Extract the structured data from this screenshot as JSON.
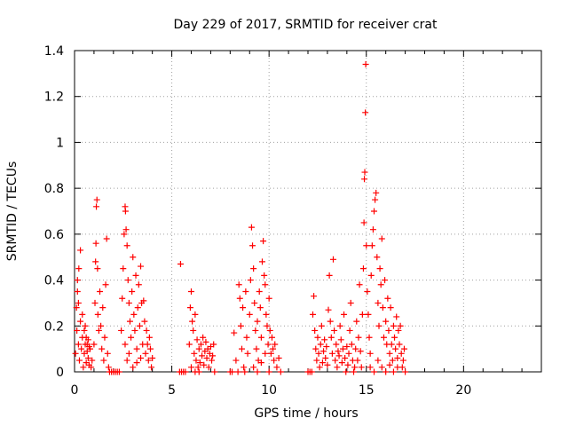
{
  "chart_data": {
    "type": "scatter",
    "title": "Day 229 of 2017, SRMTID for receiver crat",
    "xlabel": "GPS time / hours",
    "ylabel": "SRMTID / TECUs",
    "xlim": [
      0,
      24
    ],
    "ylim": [
      0,
      1.4
    ],
    "x_ticks": [
      0,
      5,
      10,
      15,
      20
    ],
    "x_tick_labels": [
      "0",
      "5",
      "10",
      "15",
      "20"
    ],
    "y_ticks": [
      0,
      0.2,
      0.4,
      0.6,
      0.8,
      1,
      1.2,
      1.4
    ],
    "y_tick_labels": [
      "0",
      "0.2",
      "0.4",
      "0.6",
      "0.8",
      "1",
      "1.2",
      "1.4"
    ],
    "grid": true,
    "marker": "+",
    "color": "#ff0000",
    "series": [
      {
        "name": "SRMTID",
        "points": [
          [
            0.05,
            0.08
          ],
          [
            0.1,
            0.28
          ],
          [
            0.12,
            0.18
          ],
          [
            0.15,
            0.35
          ],
          [
            0.2,
            0.12
          ],
          [
            0.22,
            0.45
          ],
          [
            0.25,
            0.05
          ],
          [
            0.3,
            0.22
          ],
          [
            0.35,
            0.1
          ],
          [
            0.4,
            0.15
          ],
          [
            0.45,
            0.02
          ],
          [
            0.5,
            0.08
          ],
          [
            0.55,
            0.2
          ],
          [
            0.6,
            0.04
          ],
          [
            0.65,
            0.12
          ],
          [
            0.7,
            0.06
          ],
          [
            0.75,
            0.03
          ],
          [
            0.8,
            0.1
          ],
          [
            0.85,
            0.02
          ],
          [
            0.9,
            0.05
          ],
          [
            0.3,
            0.53
          ],
          [
            0.15,
            0.4
          ],
          [
            0.2,
            0.3
          ],
          [
            0.4,
            0.25
          ],
          [
            0.5,
            0.18
          ],
          [
            0.55,
            0.12
          ],
          [
            0.6,
            0.15
          ],
          [
            0.65,
            0.09
          ],
          [
            0.7,
            0.14
          ],
          [
            0.75,
            0.11
          ],
          [
            1.0,
            0.12
          ],
          [
            1.05,
            0.3
          ],
          [
            1.08,
            0.48
          ],
          [
            1.1,
            0.56
          ],
          [
            1.12,
            0.72
          ],
          [
            1.15,
            0.75
          ],
          [
            1.18,
            0.45
          ],
          [
            1.2,
            0.25
          ],
          [
            1.25,
            0.18
          ],
          [
            1.3,
            0.35
          ],
          [
            1.35,
            0.2
          ],
          [
            1.4,
            0.1
          ],
          [
            1.45,
            0.28
          ],
          [
            1.5,
            0.05
          ],
          [
            1.55,
            0.15
          ],
          [
            1.6,
            0.38
          ],
          [
            1.65,
            0.58
          ],
          [
            1.7,
            0.08
          ],
          [
            1.75,
            0.02
          ],
          [
            1.8,
            0.0
          ],
          [
            1.9,
            0.0
          ],
          [
            2.0,
            0.0
          ],
          [
            2.1,
            0.0
          ],
          [
            2.2,
            0.0
          ],
          [
            2.3,
            0.0
          ],
          [
            2.4,
            0.18
          ],
          [
            2.45,
            0.32
          ],
          [
            2.5,
            0.45
          ],
          [
            2.55,
            0.6
          ],
          [
            2.6,
            0.72
          ],
          [
            2.62,
            0.7
          ],
          [
            2.65,
            0.62
          ],
          [
            2.7,
            0.55
          ],
          [
            2.75,
            0.4
          ],
          [
            2.8,
            0.3
          ],
          [
            2.85,
            0.22
          ],
          [
            2.9,
            0.15
          ],
          [
            2.95,
            0.35
          ],
          [
            3.0,
            0.5
          ],
          [
            3.05,
            0.25
          ],
          [
            3.1,
            0.18
          ],
          [
            3.15,
            0.42
          ],
          [
            3.2,
            0.1
          ],
          [
            3.25,
            0.28
          ],
          [
            3.3,
            0.38
          ],
          [
            3.35,
            0.2
          ],
          [
            3.4,
            0.46
          ],
          [
            3.45,
            0.3
          ],
          [
            3.5,
            0.12
          ],
          [
            3.55,
            0.31
          ],
          [
            3.6,
            0.22
          ],
          [
            3.65,
            0.08
          ],
          [
            3.7,
            0.18
          ],
          [
            3.75,
            0.12
          ],
          [
            3.8,
            0.05
          ],
          [
            3.85,
            0.15
          ],
          [
            3.9,
            0.1
          ],
          [
            3.95,
            0.02
          ],
          [
            4.0,
            0.06
          ],
          [
            2.7,
            0.05
          ],
          [
            2.8,
            0.08
          ],
          [
            3.0,
            0.02
          ],
          [
            3.2,
            0.04
          ],
          [
            2.6,
            0.12
          ],
          [
            3.4,
            0.06
          ],
          [
            5.4,
            0.0
          ],
          [
            5.5,
            0.0
          ],
          [
            5.6,
            0.0
          ],
          [
            5.45,
            0.47
          ],
          [
            5.7,
            0.0
          ],
          [
            5.9,
            0.12
          ],
          [
            5.95,
            0.28
          ],
          [
            6.0,
            0.35
          ],
          [
            6.05,
            0.22
          ],
          [
            6.1,
            0.18
          ],
          [
            6.15,
            0.08
          ],
          [
            6.2,
            0.25
          ],
          [
            6.25,
            0.05
          ],
          [
            6.3,
            0.14
          ],
          [
            6.35,
            0.02
          ],
          [
            6.4,
            0.1
          ],
          [
            6.45,
            0.04
          ],
          [
            6.5,
            0.12
          ],
          [
            6.55,
            0.07
          ],
          [
            6.6,
            0.15
          ],
          [
            6.65,
            0.03
          ],
          [
            6.7,
            0.09
          ],
          [
            6.75,
            0.13
          ],
          [
            6.8,
            0.06
          ],
          [
            6.85,
            0.1
          ],
          [
            6.9,
            0.02
          ],
          [
            6.95,
            0.08
          ],
          [
            7.0,
            0.11
          ],
          [
            7.05,
            0.05
          ],
          [
            7.1,
            0.07
          ],
          [
            7.15,
            0.12
          ],
          [
            7.2,
            0.0
          ],
          [
            6.0,
            0.02
          ],
          [
            6.2,
            0.0
          ],
          [
            6.4,
            0.0
          ],
          [
            8.0,
            0.0
          ],
          [
            8.1,
            0.0
          ],
          [
            8.2,
            0.17
          ],
          [
            8.3,
            0.05
          ],
          [
            8.4,
            0.0
          ],
          [
            8.45,
            0.38
          ],
          [
            8.5,
            0.32
          ],
          [
            8.55,
            0.2
          ],
          [
            8.6,
            0.1
          ],
          [
            8.65,
            0.28
          ],
          [
            8.7,
            0.02
          ],
          [
            8.75,
            0.0
          ],
          [
            8.8,
            0.35
          ],
          [
            8.85,
            0.15
          ],
          [
            8.9,
            0.08
          ],
          [
            9.0,
            0.25
          ],
          [
            9.05,
            0.4
          ],
          [
            9.1,
            0.63
          ],
          [
            9.15,
            0.55
          ],
          [
            9.2,
            0.45
          ],
          [
            9.25,
            0.3
          ],
          [
            9.3,
            0.18
          ],
          [
            9.35,
            0.1
          ],
          [
            9.4,
            0.22
          ],
          [
            9.45,
            0.05
          ],
          [
            9.5,
            0.35
          ],
          [
            9.55,
            0.28
          ],
          [
            9.6,
            0.15
          ],
          [
            9.65,
            0.48
          ],
          [
            9.7,
            0.57
          ],
          [
            9.75,
            0.42
          ],
          [
            9.8,
            0.38
          ],
          [
            9.85,
            0.25
          ],
          [
            9.9,
            0.2
          ],
          [
            9.95,
            0.12
          ],
          [
            10.0,
            0.32
          ],
          [
            10.05,
            0.18
          ],
          [
            10.1,
            0.08
          ],
          [
            10.15,
            0.15
          ],
          [
            10.2,
            0.1
          ],
          [
            10.25,
            0.05
          ],
          [
            10.3,
            0.12
          ],
          [
            10.4,
            0.02
          ],
          [
            10.5,
            0.06
          ],
          [
            10.6,
            0.0
          ],
          [
            9.2,
            0.02
          ],
          [
            9.4,
            0.0
          ],
          [
            9.6,
            0.04
          ],
          [
            9.8,
            0.08
          ],
          [
            10.0,
            0.0
          ],
          [
            12.0,
            0.0
          ],
          [
            12.1,
            0.0
          ],
          [
            12.2,
            0.0
          ],
          [
            12.25,
            0.25
          ],
          [
            12.3,
            0.33
          ],
          [
            12.35,
            0.18
          ],
          [
            12.4,
            0.1
          ],
          [
            12.45,
            0.05
          ],
          [
            12.5,
            0.15
          ],
          [
            12.55,
            0.08
          ],
          [
            12.6,
            0.02
          ],
          [
            12.65,
            0.12
          ],
          [
            12.7,
            0.2
          ],
          [
            12.75,
            0.04
          ],
          [
            12.8,
            0.09
          ],
          [
            12.85,
            0.14
          ],
          [
            12.9,
            0.06
          ],
          [
            12.95,
            0.11
          ],
          [
            13.0,
            0.03
          ],
          [
            13.05,
            0.27
          ],
          [
            13.1,
            0.42
          ],
          [
            13.15,
            0.22
          ],
          [
            13.2,
            0.15
          ],
          [
            13.25,
            0.08
          ],
          [
            13.3,
            0.49
          ],
          [
            13.35,
            0.18
          ],
          [
            13.4,
            0.05
          ],
          [
            13.45,
            0.12
          ],
          [
            13.5,
            0.02
          ],
          [
            13.55,
            0.09
          ],
          [
            13.6,
            0.07
          ],
          [
            13.65,
            0.2
          ],
          [
            13.7,
            0.14
          ],
          [
            13.75,
            0.04
          ],
          [
            13.8,
            0.1
          ],
          [
            13.85,
            0.25
          ],
          [
            13.9,
            0.06
          ],
          [
            13.95,
            0.0
          ],
          [
            14.0,
            0.11
          ],
          [
            14.05,
            0.03
          ],
          [
            14.1,
            0.08
          ],
          [
            14.15,
            0.18
          ],
          [
            14.2,
            0.3
          ],
          [
            14.25,
            0.12
          ],
          [
            14.3,
            0.05
          ],
          [
            14.35,
            0.0
          ],
          [
            14.4,
            0.02
          ],
          [
            14.45,
            0.1
          ],
          [
            14.5,
            0.22
          ],
          [
            14.55,
            0.05
          ],
          [
            14.6,
            0.15
          ],
          [
            14.65,
            0.38
          ],
          [
            14.7,
            0.09
          ],
          [
            14.75,
            0.02
          ],
          [
            14.8,
            0.25
          ],
          [
            14.85,
            0.45
          ],
          [
            14.88,
            0.65
          ],
          [
            14.9,
            0.84
          ],
          [
            14.92,
            0.87
          ],
          [
            14.95,
            1.13
          ],
          [
            14.97,
            1.34
          ],
          [
            15.0,
            0.55
          ],
          [
            15.05,
            0.35
          ],
          [
            15.1,
            0.25
          ],
          [
            15.15,
            0.15
          ],
          [
            15.2,
            0.08
          ],
          [
            15.25,
            0.42
          ],
          [
            15.3,
            0.55
          ],
          [
            15.35,
            0.62
          ],
          [
            15.4,
            0.7
          ],
          [
            15.45,
            0.75
          ],
          [
            15.5,
            0.78
          ],
          [
            15.55,
            0.5
          ],
          [
            15.6,
            0.3
          ],
          [
            15.65,
            0.2
          ],
          [
            15.7,
            0.45
          ],
          [
            15.75,
            0.38
          ],
          [
            15.8,
            0.58
          ],
          [
            15.85,
            0.28
          ],
          [
            15.9,
            0.15
          ],
          [
            15.95,
            0.4
          ],
          [
            16.0,
            0.22
          ],
          [
            16.05,
            0.12
          ],
          [
            16.1,
            0.32
          ],
          [
            16.15,
            0.18
          ],
          [
            16.2,
            0.08
          ],
          [
            16.25,
            0.28
          ],
          [
            16.3,
            0.12
          ],
          [
            16.35,
            0.05
          ],
          [
            16.4,
            0.2
          ],
          [
            16.45,
            0.15
          ],
          [
            16.5,
            0.1
          ],
          [
            16.55,
            0.24
          ],
          [
            16.6,
            0.06
          ],
          [
            16.65,
            0.18
          ],
          [
            16.7,
            0.12
          ],
          [
            16.75,
            0.2
          ],
          [
            16.8,
            0.08
          ],
          [
            16.85,
            0.02
          ],
          [
            16.9,
            0.05
          ],
          [
            16.95,
            0.1
          ],
          [
            17.0,
            0.0
          ],
          [
            15.2,
            0.02
          ],
          [
            15.4,
            0.0
          ],
          [
            15.6,
            0.05
          ],
          [
            15.8,
            0.02
          ],
          [
            16.0,
            0.0
          ],
          [
            16.2,
            0.03
          ],
          [
            16.4,
            0.0
          ],
          [
            16.6,
            0.02
          ]
        ]
      }
    ]
  }
}
